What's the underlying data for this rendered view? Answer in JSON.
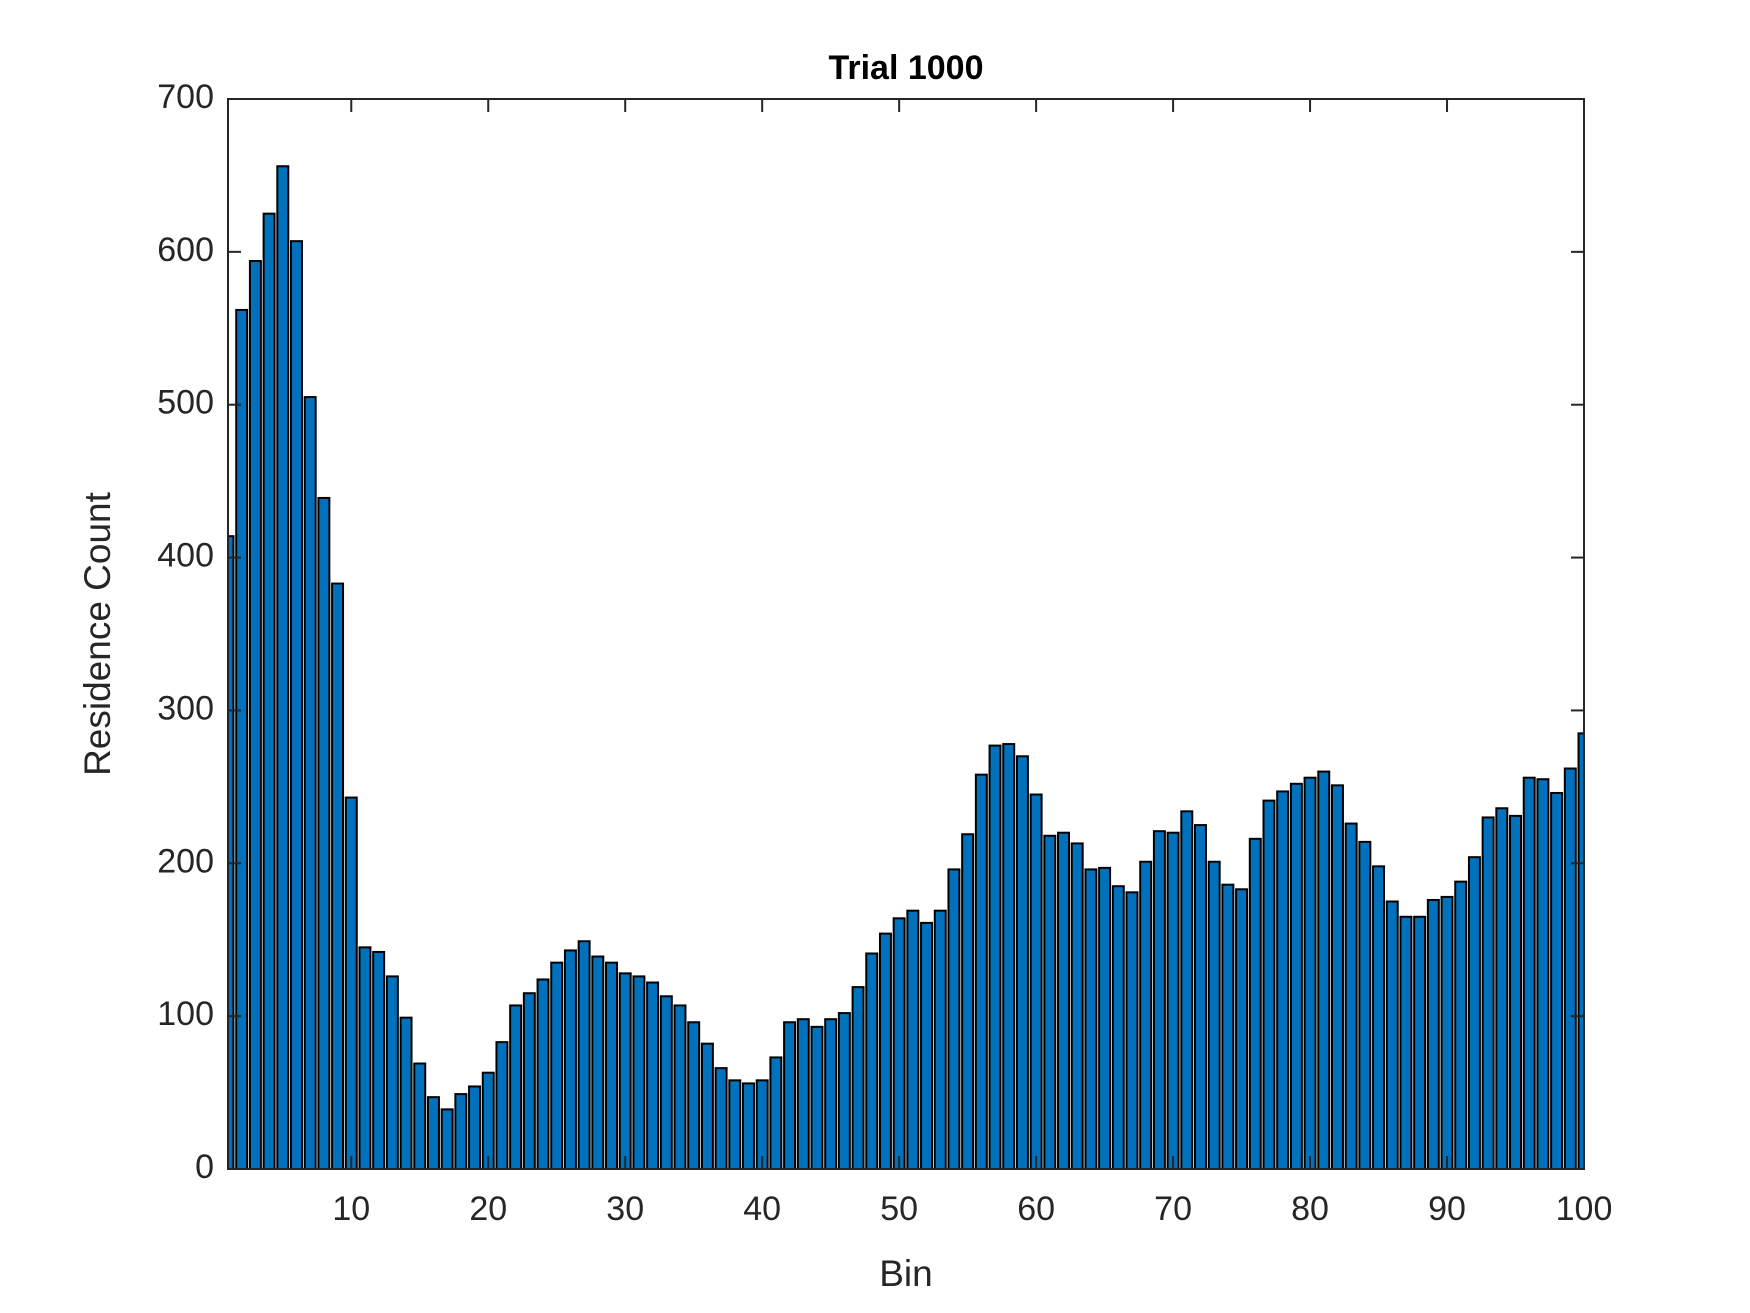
{
  "chart_data": {
    "type": "bar",
    "title": "Trial 1000",
    "xlabel": "Bin",
    "ylabel": "Residence Count",
    "color": "#0072bd",
    "edgecolor": "#000000",
    "x": [
      1,
      2,
      3,
      4,
      5,
      6,
      7,
      8,
      9,
      10,
      11,
      12,
      13,
      14,
      15,
      16,
      17,
      18,
      19,
      20,
      21,
      22,
      23,
      24,
      25,
      26,
      27,
      28,
      29,
      30,
      31,
      32,
      33,
      34,
      35,
      36,
      37,
      38,
      39,
      40,
      41,
      42,
      43,
      44,
      45,
      46,
      47,
      48,
      49,
      50,
      51,
      52,
      53,
      54,
      55,
      56,
      57,
      58,
      59,
      60,
      61,
      62,
      63,
      64,
      65,
      66,
      67,
      68,
      69,
      70,
      71,
      72,
      73,
      74,
      75,
      76,
      77,
      78,
      79,
      80,
      81,
      82,
      83,
      84,
      85,
      86,
      87,
      88,
      89,
      90,
      91,
      92,
      93,
      94,
      95,
      96,
      97,
      98,
      99,
      100
    ],
    "values": [
      414,
      562,
      594,
      625,
      656,
      607,
      505,
      439,
      383,
      243,
      145,
      142,
      126,
      99,
      69,
      47,
      39,
      49,
      54,
      63,
      83,
      107,
      115,
      124,
      135,
      143,
      149,
      139,
      135,
      128,
      126,
      122,
      113,
      107,
      96,
      82,
      66,
      58,
      56,
      58,
      73,
      96,
      98,
      93,
      98,
      102,
      119,
      141,
      154,
      164,
      169,
      161,
      169,
      196,
      219,
      258,
      277,
      278,
      270,
      245,
      218,
      220,
      213,
      196,
      197,
      185,
      181,
      201,
      221,
      220,
      234,
      225,
      201,
      186,
      183,
      216,
      241,
      247,
      252,
      256,
      260,
      251,
      226,
      214,
      198,
      175,
      165,
      165,
      176,
      178,
      188,
      204,
      230,
      236,
      231,
      256,
      255,
      246,
      262,
      285
    ],
    "xlim": [
      1,
      100
    ],
    "xticks": [
      10,
      20,
      30,
      40,
      50,
      60,
      70,
      80,
      90,
      100
    ],
    "ylim": [
      0,
      700
    ],
    "yticks": [
      0,
      100,
      200,
      300,
      400,
      500,
      600,
      700
    ]
  }
}
